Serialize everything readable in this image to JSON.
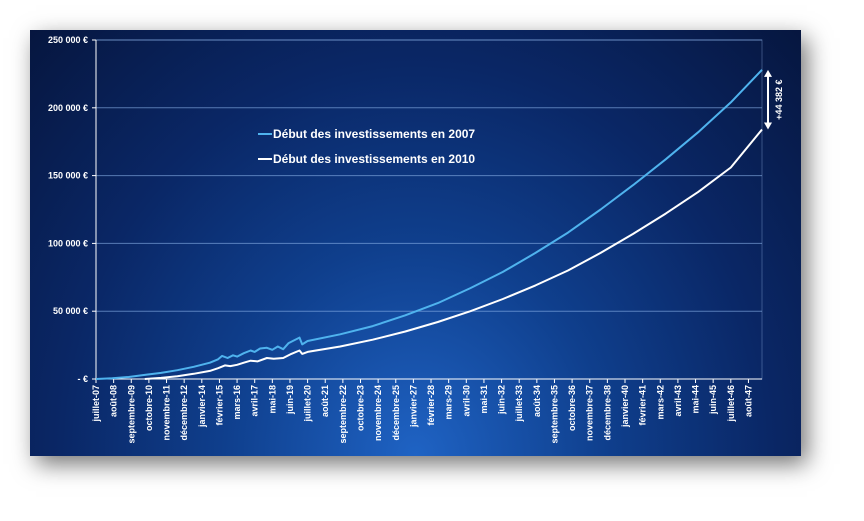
{
  "chart_data": {
    "type": "line",
    "title": "",
    "xlabel": "",
    "ylabel": "",
    "ylim": [
      0,
      250000
    ],
    "y_ticks": [
      {
        "value": 0,
        "label": "-  €"
      },
      {
        "value": 50000,
        "label": "50 000 €"
      },
      {
        "value": 100000,
        "label": "100 000 €"
      },
      {
        "value": 150000,
        "label": "150 000 €"
      },
      {
        "value": 200000,
        "label": "200 000 €"
      },
      {
        "value": 250000,
        "label": "250 000 €"
      }
    ],
    "grid": true,
    "legend_position": "center-left",
    "x_range": [
      "2007-07",
      "2048-06"
    ],
    "x_tick_labels": [
      {
        "date": "2007-07",
        "label": "juillet-07"
      },
      {
        "date": "2008-08",
        "label": "août-08"
      },
      {
        "date": "2009-09",
        "label": "septembre-09"
      },
      {
        "date": "2010-10",
        "label": "octobre-10"
      },
      {
        "date": "2011-11",
        "label": "novembre-11"
      },
      {
        "date": "2012-12",
        "label": "décembre-12"
      },
      {
        "date": "2014-01",
        "label": "janvier-14"
      },
      {
        "date": "2015-02",
        "label": "février-15"
      },
      {
        "date": "2016-03",
        "label": "mars-16"
      },
      {
        "date": "2017-04",
        "label": "avril-17"
      },
      {
        "date": "2018-05",
        "label": "mai-18"
      },
      {
        "date": "2019-06",
        "label": "juin-19"
      },
      {
        "date": "2020-07",
        "label": "juillet-20"
      },
      {
        "date": "2021-08",
        "label": "août-21"
      },
      {
        "date": "2022-09",
        "label": "septembre-22"
      },
      {
        "date": "2023-10",
        "label": "octobre-23"
      },
      {
        "date": "2024-11",
        "label": "novembre-24"
      },
      {
        "date": "2025-12",
        "label": "décembre-25"
      },
      {
        "date": "2027-01",
        "label": "janvier-27"
      },
      {
        "date": "2028-02",
        "label": "février-28"
      },
      {
        "date": "2029-03",
        "label": "mars-29"
      },
      {
        "date": "2030-04",
        "label": "avril-30"
      },
      {
        "date": "2031-05",
        "label": "mai-31"
      },
      {
        "date": "2032-06",
        "label": "juin-32"
      },
      {
        "date": "2033-07",
        "label": "juillet-33"
      },
      {
        "date": "2034-08",
        "label": "août-34"
      },
      {
        "date": "2035-09",
        "label": "septembre-35"
      },
      {
        "date": "2036-10",
        "label": "octobre-36"
      },
      {
        "date": "2037-11",
        "label": "novembre-37"
      },
      {
        "date": "2038-12",
        "label": "décembre-38"
      },
      {
        "date": "2040-01",
        "label": "janvier-40"
      },
      {
        "date": "2041-02",
        "label": "février-41"
      },
      {
        "date": "2042-03",
        "label": "mars-42"
      },
      {
        "date": "2043-04",
        "label": "avril-43"
      },
      {
        "date": "2044-05",
        "label": "mai-44"
      },
      {
        "date": "2045-06",
        "label": "juin-45"
      },
      {
        "date": "2046-07",
        "label": "juillet-46"
      },
      {
        "date": "2047-08",
        "label": "août-47"
      }
    ],
    "series": [
      {
        "name": "Début des investissements en 2007",
        "color": "#4fb3ee",
        "points": [
          {
            "x": "2007-07",
            "y": 0
          },
          {
            "x": "2008-07",
            "y": 600
          },
          {
            "x": "2009-07",
            "y": 1500
          },
          {
            "x": "2010-07",
            "y": 3000
          },
          {
            "x": "2011-07",
            "y": 4500
          },
          {
            "x": "2012-07",
            "y": 6500
          },
          {
            "x": "2013-07",
            "y": 9000
          },
          {
            "x": "2014-07",
            "y": 12000
          },
          {
            "x": "2015-01",
            "y": 14500
          },
          {
            "x": "2015-04",
            "y": 17000
          },
          {
            "x": "2015-08",
            "y": 15500
          },
          {
            "x": "2015-12",
            "y": 17500
          },
          {
            "x": "2016-03",
            "y": 16500
          },
          {
            "x": "2016-08",
            "y": 19000
          },
          {
            "x": "2017-01",
            "y": 21000
          },
          {
            "x": "2017-04",
            "y": 20000
          },
          {
            "x": "2017-08",
            "y": 22500
          },
          {
            "x": "2018-01",
            "y": 23000
          },
          {
            "x": "2018-05",
            "y": 21500
          },
          {
            "x": "2018-09",
            "y": 24000
          },
          {
            "x": "2019-01",
            "y": 22000
          },
          {
            "x": "2019-05",
            "y": 26500
          },
          {
            "x": "2019-09",
            "y": 28500
          },
          {
            "x": "2020-01",
            "y": 30500
          },
          {
            "x": "2020-03",
            "y": 25500
          },
          {
            "x": "2020-07",
            "y": 28000
          },
          {
            "x": "2022-07",
            "y": 33000
          },
          {
            "x": "2024-07",
            "y": 39000
          },
          {
            "x": "2026-07",
            "y": 47000
          },
          {
            "x": "2028-07",
            "y": 56000
          },
          {
            "x": "2030-07",
            "y": 67000
          },
          {
            "x": "2032-07",
            "y": 79000
          },
          {
            "x": "2034-07",
            "y": 93000
          },
          {
            "x": "2036-07",
            "y": 108000
          },
          {
            "x": "2038-07",
            "y": 125000
          },
          {
            "x": "2040-07",
            "y": 143000
          },
          {
            "x": "2042-07",
            "y": 162000
          },
          {
            "x": "2044-07",
            "y": 182000
          },
          {
            "x": "2046-07",
            "y": 204000
          },
          {
            "x": "2048-06",
            "y": 228000
          }
        ]
      },
      {
        "name": "Début des investissements en 2010",
        "color": "#ffffff",
        "points": [
          {
            "x": "2010-07",
            "y": 0
          },
          {
            "x": "2011-07",
            "y": 800
          },
          {
            "x": "2012-07",
            "y": 2000
          },
          {
            "x": "2013-07",
            "y": 3800
          },
          {
            "x": "2014-07",
            "y": 6000
          },
          {
            "x": "2015-01",
            "y": 8000
          },
          {
            "x": "2015-06",
            "y": 10000
          },
          {
            "x": "2015-10",
            "y": 9500
          },
          {
            "x": "2016-03",
            "y": 10500
          },
          {
            "x": "2016-08",
            "y": 12000
          },
          {
            "x": "2017-01",
            "y": 13500
          },
          {
            "x": "2017-06",
            "y": 13000
          },
          {
            "x": "2018-01",
            "y": 15500
          },
          {
            "x": "2018-06",
            "y": 15000
          },
          {
            "x": "2019-01",
            "y": 15500
          },
          {
            "x": "2019-07",
            "y": 18500
          },
          {
            "x": "2020-01",
            "y": 21000
          },
          {
            "x": "2020-03",
            "y": 18500
          },
          {
            "x": "2020-07",
            "y": 20000
          },
          {
            "x": "2022-07",
            "y": 24000
          },
          {
            "x": "2024-07",
            "y": 29000
          },
          {
            "x": "2026-07",
            "y": 35000
          },
          {
            "x": "2028-07",
            "y": 42000
          },
          {
            "x": "2030-07",
            "y": 50000
          },
          {
            "x": "2032-07",
            "y": 59000
          },
          {
            "x": "2034-07",
            "y": 69000
          },
          {
            "x": "2036-07",
            "y": 80000
          },
          {
            "x": "2038-07",
            "y": 93000
          },
          {
            "x": "2040-07",
            "y": 107000
          },
          {
            "x": "2042-07",
            "y": 122000
          },
          {
            "x": "2044-07",
            "y": 138000
          },
          {
            "x": "2046-07",
            "y": 156000
          },
          {
            "x": "2048-06",
            "y": 184000
          }
        ]
      }
    ],
    "annotation": {
      "label": "+44 382 €",
      "from_value": 184000,
      "to_value": 228000,
      "at": "2048-06"
    }
  }
}
